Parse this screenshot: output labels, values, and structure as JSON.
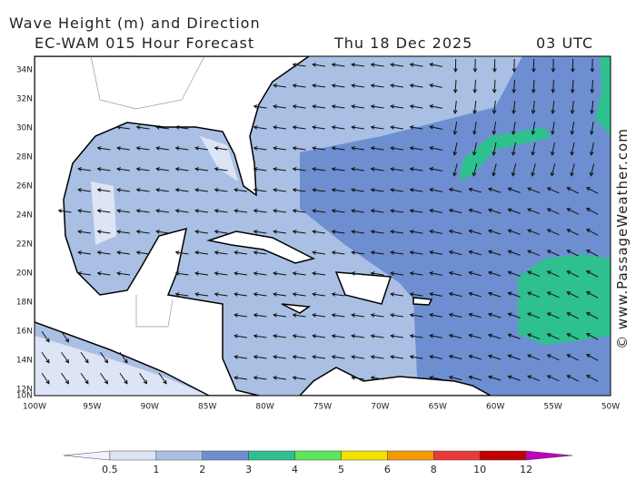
{
  "header": {
    "title": "Wave Height (m) and Direction",
    "model": "EC-WAM 015 Hour Forecast",
    "date": "Thu 18 Dec 2025",
    "time": "03 UTC"
  },
  "map": {
    "lat_labels": [
      "34N",
      "32N",
      "30N",
      "28N",
      "26N",
      "24N",
      "22N",
      "20N",
      "18N",
      "16N",
      "14N",
      "12N",
      "10N"
    ],
    "lon_labels": [
      "100W",
      "95W",
      "90W",
      "85W",
      "80W",
      "75W",
      "70W",
      "65W",
      "60W",
      "55W",
      "50W"
    ]
  },
  "legend": {
    "labels": [
      "0.5",
      "1",
      "2",
      "3",
      "4",
      "5",
      "6",
      "8",
      "10",
      "12"
    ],
    "colors": [
      "#f2f2ff",
      "#dde4f5",
      "#a9c0e4",
      "#6d8fd2",
      "#2fc08f",
      "#5ce65a",
      "#f2e200",
      "#f29a00",
      "#e83a3a",
      "#c00000",
      "#c000c0"
    ]
  },
  "credit": "© www.PassageWeather.com"
}
